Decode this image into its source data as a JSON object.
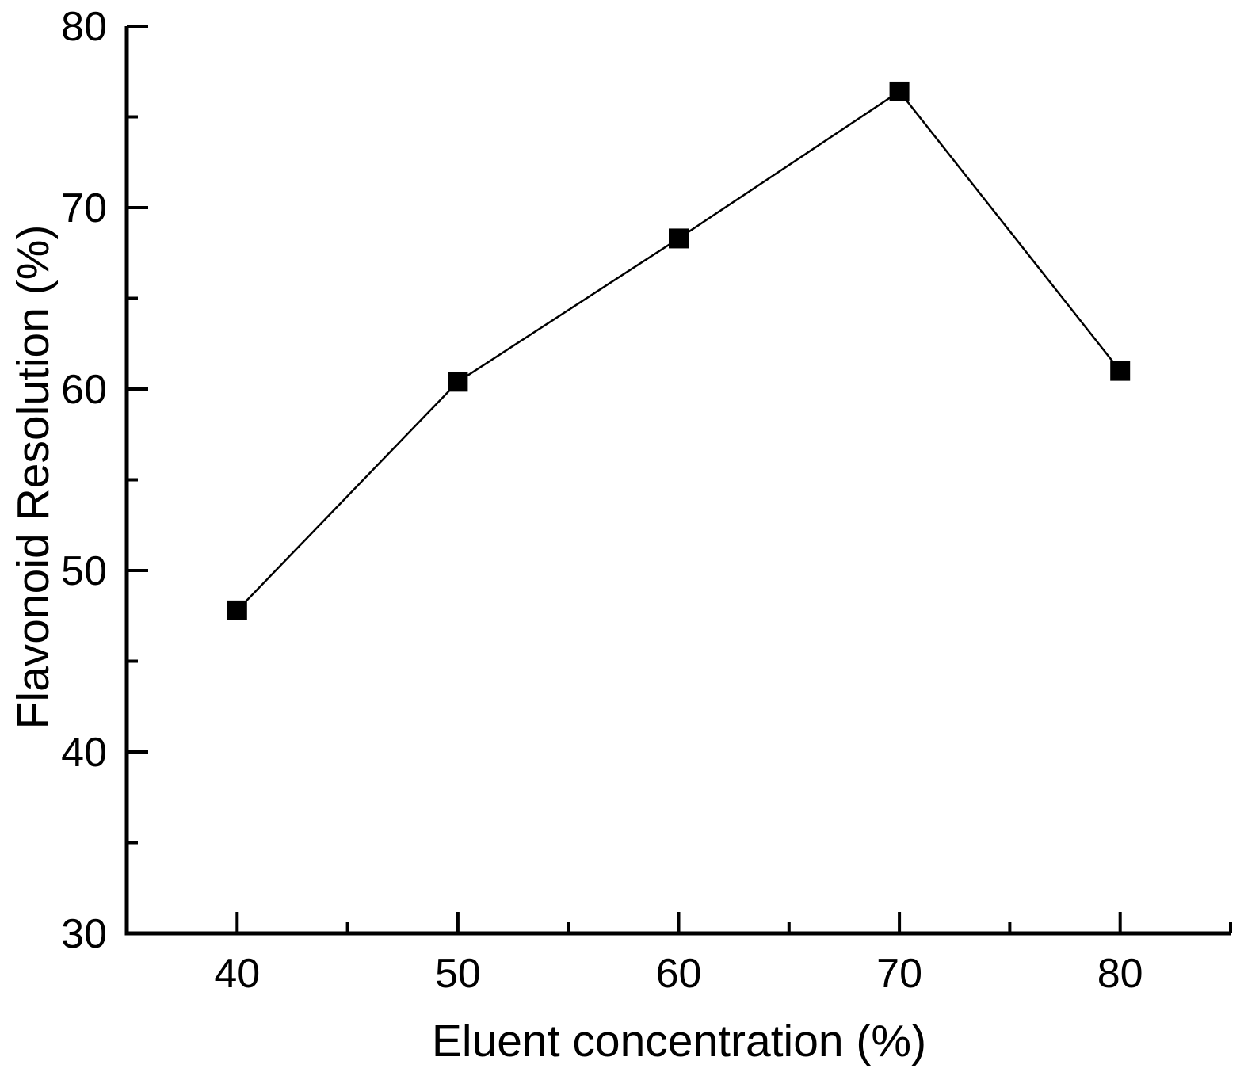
{
  "chart_data": {
    "type": "line",
    "series": [
      {
        "name": "Flavonoid Resolution",
        "x": [
          40,
          50,
          60,
          70,
          80
        ],
        "y": [
          47.8,
          60.4,
          68.3,
          76.4,
          61.0
        ]
      }
    ],
    "title": "",
    "xlabel": "Eluent concentration (%)",
    "ylabel": "Flavonoid Resolution (%)",
    "xlim": [
      35,
      85
    ],
    "ylim": [
      30,
      80
    ],
    "x_major_ticks": [
      40,
      50,
      60,
      70,
      80
    ],
    "x_minor_ticks": [
      45,
      55,
      65,
      75,
      85
    ],
    "y_major_ticks": [
      30,
      40,
      50,
      60,
      70,
      80
    ],
    "y_minor_ticks": [
      35,
      45,
      55,
      65,
      75
    ],
    "x_tick_labels": [
      "40",
      "50",
      "60",
      "70",
      "80"
    ],
    "y_tick_labels": [
      "30",
      "40",
      "50",
      "60",
      "70",
      "80"
    ],
    "grid": false,
    "legend": false,
    "marker": "filled-square",
    "line_color": "#000000",
    "marker_color": "#000000",
    "axis_color": "#000000",
    "background_color": "#ffffff"
  }
}
